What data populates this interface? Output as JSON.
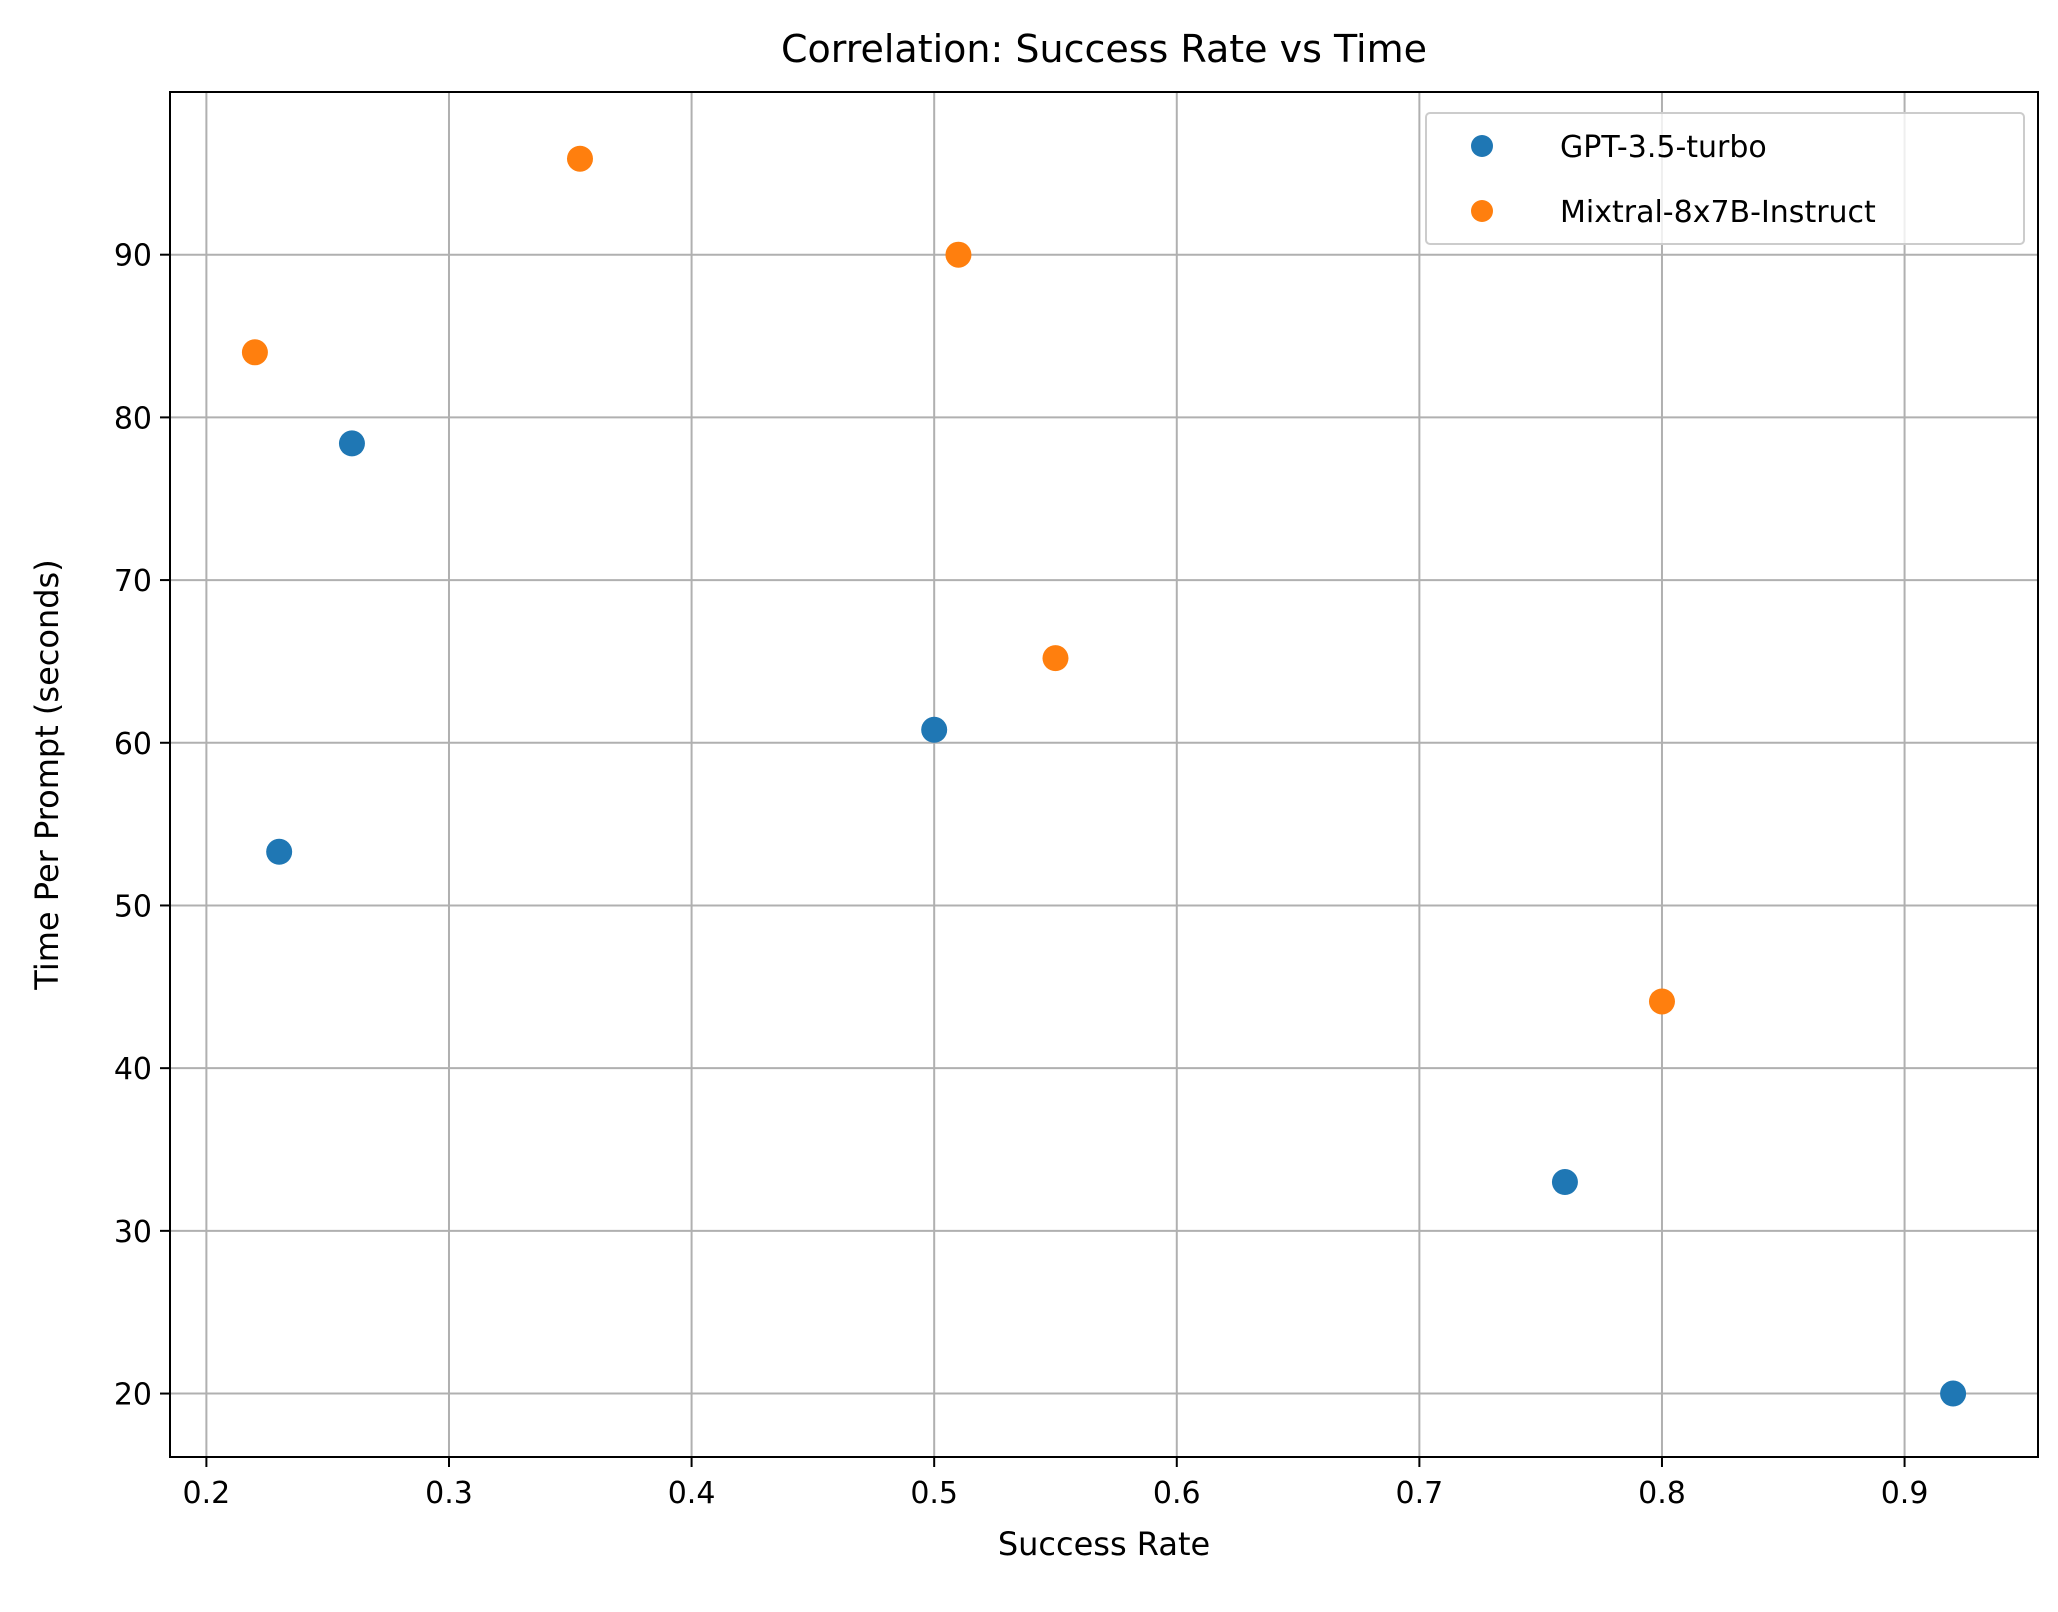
{
  "chart_data": {
    "type": "scatter",
    "title": "Correlation: Success Rate vs Time",
    "xlabel": "Success Rate",
    "ylabel": "Time Per Prompt (seconds)",
    "xlim": [
      0.185,
      0.955
    ],
    "ylim": [
      16.1,
      100.0
    ],
    "xticks": [
      0.2,
      0.3,
      0.4,
      0.5,
      0.6,
      0.7,
      0.8,
      0.9
    ],
    "yticks": [
      20,
      30,
      40,
      50,
      60,
      70,
      80,
      90
    ],
    "xtick_labels": [
      "0.2",
      "0.3",
      "0.4",
      "0.5",
      "0.6",
      "0.7",
      "0.8",
      "0.9"
    ],
    "ytick_labels": [
      "20",
      "30",
      "40",
      "50",
      "60",
      "70",
      "80",
      "90"
    ],
    "grid": true,
    "legend_position": "top-right",
    "series": [
      {
        "name": "GPT-3.5-turbo",
        "color": "#1f77b4",
        "points": [
          {
            "x": 0.23,
            "y": 53.3
          },
          {
            "x": 0.26,
            "y": 78.4
          },
          {
            "x": 0.5,
            "y": 60.8
          },
          {
            "x": 0.76,
            "y": 33.0
          },
          {
            "x": 0.92,
            "y": 20.0
          }
        ]
      },
      {
        "name": "Mixtral-8x7B-Instruct",
        "color": "#ff7f0e",
        "points": [
          {
            "x": 0.22,
            "y": 84.0
          },
          {
            "x": 0.354,
            "y": 95.9
          },
          {
            "x": 0.51,
            "y": 90.0
          },
          {
            "x": 0.55,
            "y": 65.2
          },
          {
            "x": 0.8,
            "y": 44.1
          }
        ]
      }
    ]
  }
}
